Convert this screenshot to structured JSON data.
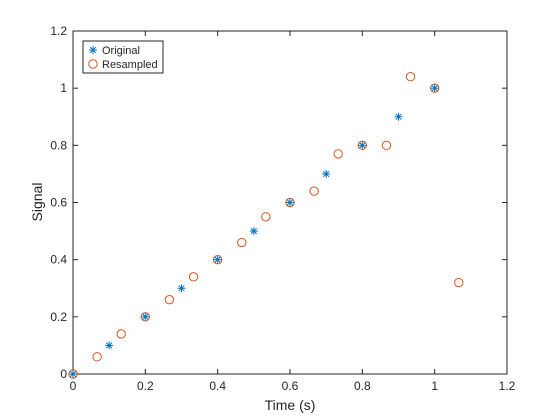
{
  "chart_data": {
    "type": "scatter",
    "xlabel": "Time (s)",
    "ylabel": "Signal",
    "xlim": [
      0,
      1.2
    ],
    "ylim": [
      0,
      1.2
    ],
    "xticks": [
      0,
      0.2,
      0.4,
      0.6,
      0.8,
      1,
      1.2
    ],
    "xtick_labels": [
      "0",
      "0.2",
      "0.4",
      "0.6",
      "0.8",
      "1",
      "1.2"
    ],
    "yticks": [
      0,
      0.2,
      0.4,
      0.6,
      0.8,
      1,
      1.2
    ],
    "ytick_labels": [
      "0",
      "0.2",
      "0.4",
      "0.6",
      "0.8",
      "1",
      "1.2"
    ],
    "grid": false,
    "legend_position": "top-left",
    "series": [
      {
        "name": "Original",
        "marker": "asterisk",
        "color": "#0072BD",
        "x": [
          0,
          0.1,
          0.2,
          0.3,
          0.4,
          0.5,
          0.6,
          0.7,
          0.8,
          0.9,
          1.0
        ],
        "y": [
          0,
          0.1,
          0.2,
          0.3,
          0.4,
          0.5,
          0.6,
          0.7,
          0.8,
          0.9,
          1.0
        ]
      },
      {
        "name": "Resampled",
        "marker": "circle",
        "color": "#D95319",
        "x": [
          0,
          0.0667,
          0.1333,
          0.2,
          0.2667,
          0.3333,
          0.4,
          0.4667,
          0.5333,
          0.6,
          0.6667,
          0.7333,
          0.8,
          0.8667,
          0.9333,
          1.0,
          1.0667
        ],
        "y": [
          0,
          0.06,
          0.14,
          0.2,
          0.26,
          0.34,
          0.4,
          0.46,
          0.55,
          0.6,
          0.64,
          0.77,
          0.8,
          0.8,
          1.04,
          1.0,
          0.32
        ]
      }
    ]
  }
}
